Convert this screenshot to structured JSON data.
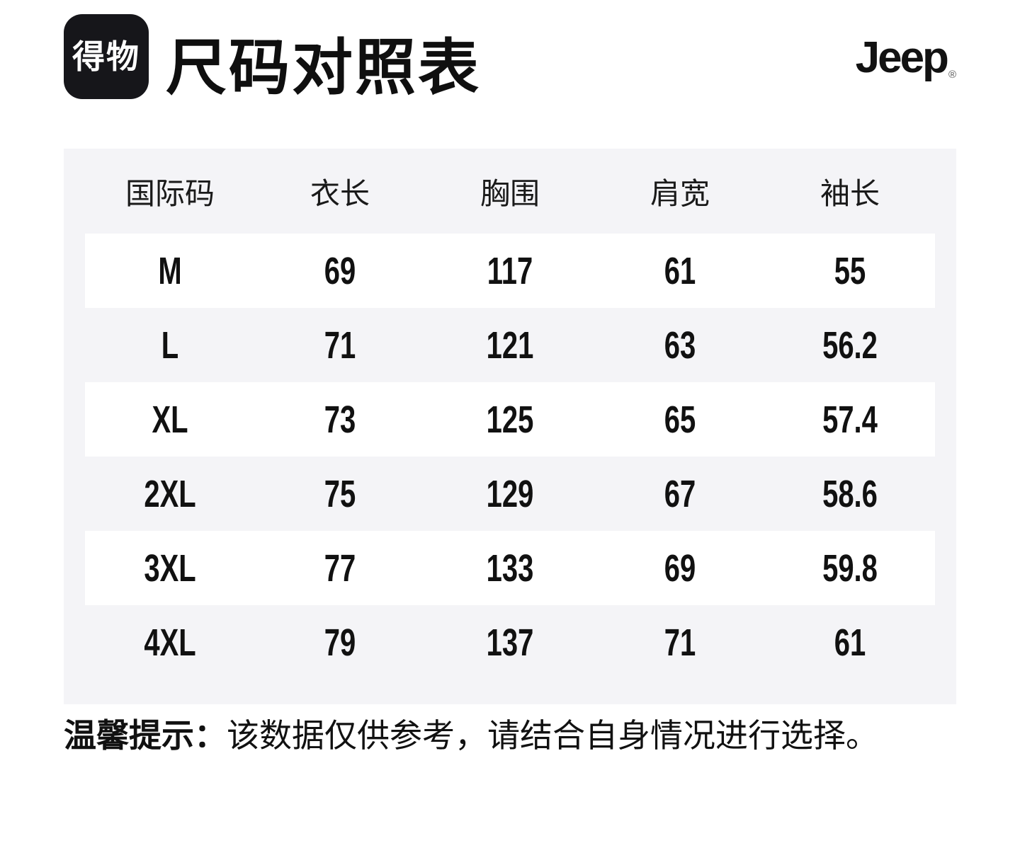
{
  "header": {
    "logo_text": "得物",
    "title": "尺码对照表",
    "brand": "Jeep",
    "brand_registered": "®"
  },
  "colors": {
    "logo_background": "#16161a",
    "logo_foreground": "#ffffff",
    "table_background": "#f4f4f7",
    "row_highlight": "#ffffff",
    "text": "#111111"
  },
  "table": {
    "columns": [
      "国际码",
      "衣长",
      "胸围",
      "肩宽",
      "袖长"
    ],
    "rows": [
      {
        "size": "M",
        "values": [
          "69",
          "117",
          "61",
          "55"
        ]
      },
      {
        "size": "L",
        "values": [
          "71",
          "121",
          "63",
          "56.2"
        ]
      },
      {
        "size": "XL",
        "values": [
          "73",
          "125",
          "65",
          "57.4"
        ]
      },
      {
        "size": "2XL",
        "values": [
          "75",
          "129",
          "67",
          "58.6"
        ]
      },
      {
        "size": "3XL",
        "values": [
          "77",
          "133",
          "69",
          "59.8"
        ]
      },
      {
        "size": "4XL",
        "values": [
          "79",
          "137",
          "71",
          "61"
        ]
      }
    ]
  },
  "note": {
    "label": "温馨提示：",
    "text": "该数据仅供参考，请结合自身情况进行选择。"
  }
}
